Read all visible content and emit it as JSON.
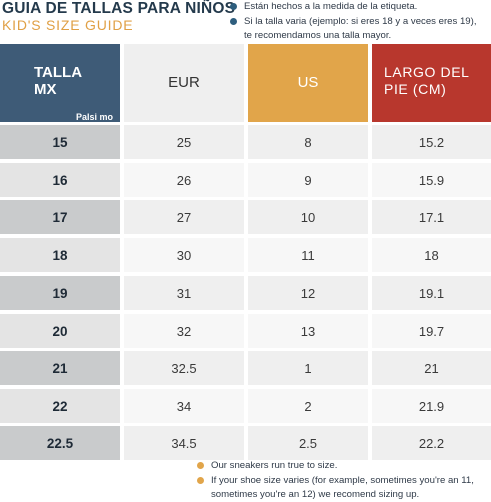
{
  "header": {
    "title": "GUIA DE TALLAS PARA NIÑOS",
    "subtitle": "KID'S  SIZE GUIDE"
  },
  "notes_es": [
    "Están hechos a la medida de la etiqueta.",
    "Si la talla varia (ejemplo: si eres 18 y a veces eres 19),",
    "te recomendamos una talla mayor."
  ],
  "table": {
    "columns": {
      "mx_line1": "TALLA",
      "mx_line2": "MX",
      "eur": "EUR",
      "us": "US",
      "foot_line1": "LARGO DEL",
      "foot_line2": "PIE (CM)"
    },
    "watermark": "Palsi mo",
    "rows": [
      {
        "mx": "15",
        "eur": "25",
        "us": "8",
        "foot": "15.2"
      },
      {
        "mx": "16",
        "eur": "26",
        "us": "9",
        "foot": "15.9"
      },
      {
        "mx": "17",
        "eur": "27",
        "us": "10",
        "foot": "17.1"
      },
      {
        "mx": "18",
        "eur": "30",
        "us": "11",
        "foot": "18"
      },
      {
        "mx": "19",
        "eur": "31",
        "us": "12",
        "foot": "19.1"
      },
      {
        "mx": "20",
        "eur": "32",
        "us": "13",
        "foot": "19.7"
      },
      {
        "mx": "21",
        "eur": "32.5",
        "us": "1",
        "foot": "21"
      },
      {
        "mx": "22",
        "eur": "34",
        "us": "2",
        "foot": "21.9"
      },
      {
        "mx": "22.5",
        "eur": "34.5",
        "us": "2.5",
        "foot": "22.2"
      }
    ]
  },
  "notes_en": [
    "Our sneakers run true to size.",
    "If your shoe size varies (for example, sometimes you're an 11,",
    "sometimes you're an 12) we recomend sizing up."
  ],
  "colors": {
    "navy": "#3e5b77",
    "orange": "#e1a54a",
    "red": "#b8372d"
  }
}
